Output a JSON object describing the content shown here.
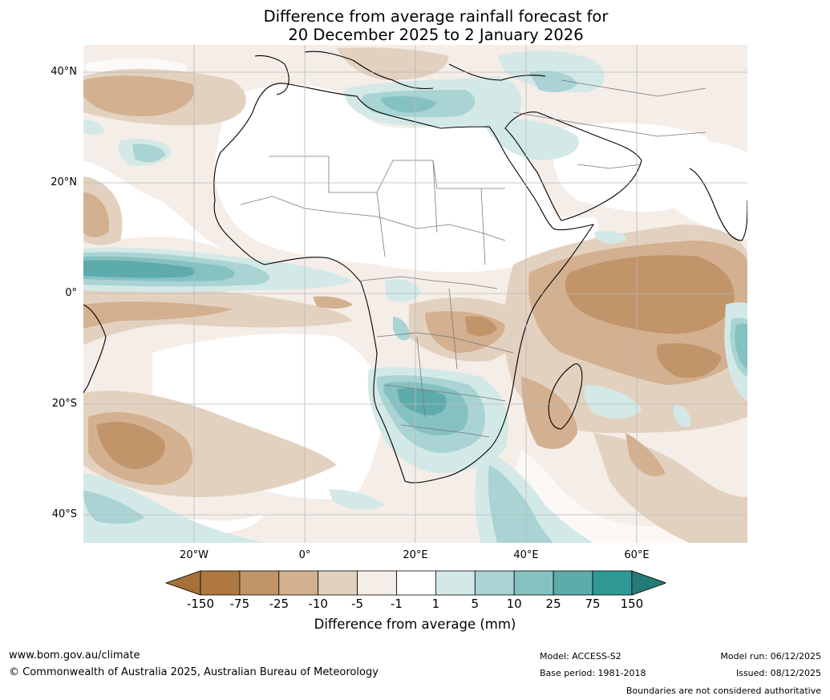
{
  "title": {
    "line1": "Difference from average rainfall forecast for",
    "line2": "20 December 2025 to 2 January 2026"
  },
  "axes": {
    "lat_labels": [
      "40°N",
      "20°N",
      "0°",
      "20°S",
      "40°S"
    ],
    "lon_labels": [
      "20°W",
      "0°",
      "20°E",
      "40°E",
      "60°E"
    ]
  },
  "colorbar": {
    "tick_labels": [
      "-150",
      "-75",
      "-25",
      "-10",
      "-5",
      "-1",
      "1",
      "5",
      "10",
      "25",
      "75",
      "150"
    ],
    "colors": [
      "#a5703a",
      "#ae7840",
      "#c1946a",
      "#d3b08f",
      "#e3d1c0",
      "#f5ede7",
      "#ffffff",
      "#d3e9e8",
      "#a9d4d3",
      "#86c1c1",
      "#5eabab",
      "#2f9995",
      "#247b78"
    ],
    "title": "Difference from average (mm)"
  },
  "footer": {
    "website": "www.bom.gov.au/climate",
    "copyright": "© Commonwealth of Australia 2025, Australian Bureau of Meteorology",
    "model": "Model: ACCESS-S2",
    "base_period": "Base period: 1981-2018",
    "model_run": "Model run: 06/12/2025",
    "issued": "Issued: 08/12/2025",
    "disclaimer": "Boundaries are not considered authoritative"
  }
}
